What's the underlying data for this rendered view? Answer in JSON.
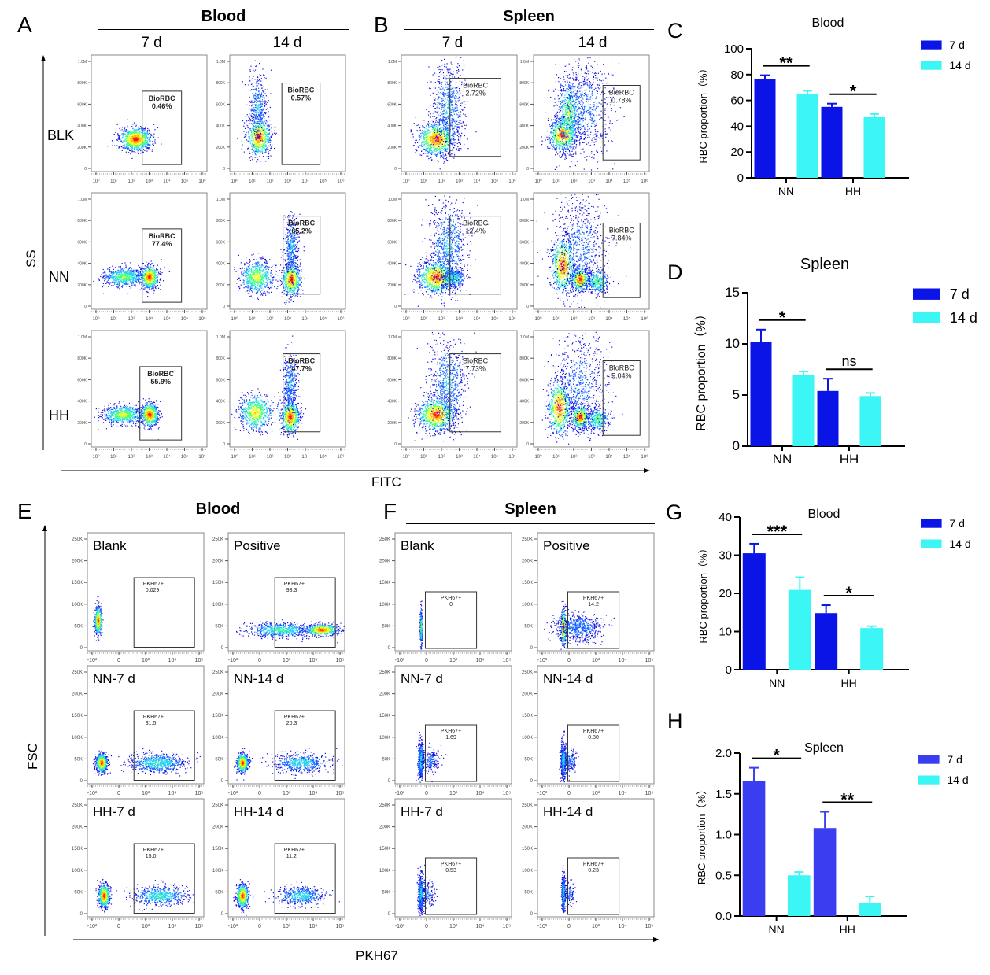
{
  "panels": {
    "A": {
      "letter": "A",
      "group_title": "Blood",
      "columns": [
        "7 d",
        "14 d"
      ],
      "rows": [
        "BLK",
        "NN",
        "HH"
      ],
      "gate_name": "BioRBC",
      "gate_values": [
        [
          "0.46%",
          "0.57%"
        ],
        [
          "77.4%",
          "65.2%"
        ],
        [
          "55.9%",
          "47.7%"
        ]
      ],
      "y_ticks": [
        "0",
        "200K",
        "400K",
        "600K",
        "800K",
        "1.0M"
      ],
      "x_ticks": [
        "10⁰",
        "10¹",
        "10²",
        "10³",
        "10⁴",
        "10⁵",
        "10⁶"
      ]
    },
    "B": {
      "letter": "B",
      "group_title": "Spleen",
      "columns": [
        "7 d",
        "14 d"
      ],
      "gate_name": "BioRBC",
      "gate_values": [
        [
          "2.72%",
          "0.78%"
        ],
        [
          "12.4%",
          "7.84%"
        ],
        [
          "7.73%",
          "5.04%"
        ]
      ],
      "y_ticks": [
        "0",
        "200K",
        "400K",
        "600K",
        "800K",
        "1.0M"
      ],
      "x_ticks": [
        "10⁰",
        "10¹",
        "10²",
        "10³",
        "10⁴",
        "10⁵",
        "10⁶"
      ]
    },
    "AB_axes": {
      "y_label": "SS",
      "x_label": "FITC"
    },
    "E": {
      "letter": "E",
      "group_title": "Blood",
      "plot_labels": [
        [
          "Blank",
          "Positive"
        ],
        [
          "NN-7 d",
          "NN-14 d"
        ],
        [
          "HH-7 d",
          "HH-14 d"
        ]
      ],
      "gate_name": "PKH67+",
      "gate_values": [
        [
          "0.029",
          "93.3"
        ],
        [
          "31.5",
          "20.3"
        ],
        [
          "15.0",
          "11.2"
        ]
      ],
      "y_ticks": [
        "0",
        "50K",
        "100K",
        "150K",
        "200K",
        "250K"
      ],
      "x_ticks": [
        "-10³",
        "0",
        "10³",
        "10⁴",
        "10⁵"
      ]
    },
    "F": {
      "letter": "F",
      "group_title": "Spleen",
      "plot_labels": [
        [
          "Blank",
          "Positive"
        ],
        [
          "NN-7 d",
          "NN-14 d"
        ],
        [
          "HH-7 d",
          "HH-14 d"
        ]
      ],
      "gate_name": "PKH67+",
      "gate_values": [
        [
          "0",
          "14.2"
        ],
        [
          "1.69",
          "0.80"
        ],
        [
          "0.53",
          "0.23"
        ]
      ],
      "y_ticks": [
        "0",
        "50K",
        "100K",
        "150K",
        "200K",
        "250K"
      ],
      "x_ticks": [
        "-10³",
        "0",
        "10³",
        "10⁴",
        "10⁵"
      ]
    },
    "EF_axes": {
      "y_label": "FSC",
      "x_label": "PKH67"
    }
  },
  "colors": {
    "day7": "#0a14e6",
    "day14": "#3cf5f5",
    "day7_H": "#3a3ef0"
  },
  "chart_data": [
    {
      "id": "C",
      "letter": "C",
      "type": "bar",
      "title": "Blood",
      "ylabel": "RBC proportion（%）",
      "xlabel": "",
      "categories": [
        "NN",
        "HH"
      ],
      "ylim": [
        0,
        100
      ],
      "yticks": [
        "0",
        "20",
        "40",
        "60",
        "80",
        "100"
      ],
      "ytick_values": [
        0,
        20,
        40,
        60,
        80,
        100
      ],
      "series": [
        {
          "name": "7 d",
          "values": [
            76.5,
            55
          ],
          "errors": [
            3,
            2.5
          ]
        },
        {
          "name": "14 d",
          "values": [
            65,
            47
          ],
          "errors": [
            2.5,
            2.5
          ]
        }
      ],
      "significance": [
        "**",
        "*"
      ],
      "legend": "top-right"
    },
    {
      "id": "D",
      "letter": "D",
      "type": "bar",
      "title": "Spleen",
      "ylabel": "RBC proportion（%）",
      "xlabel": "",
      "categories": [
        "NN",
        "HH"
      ],
      "ylim": [
        0,
        15
      ],
      "yticks": [
        "0",
        "5",
        "10",
        "15"
      ],
      "ytick_values": [
        0,
        5,
        10,
        15
      ],
      "series": [
        {
          "name": "7 d",
          "values": [
            10.2,
            5.4
          ],
          "errors": [
            1.2,
            1.2
          ]
        },
        {
          "name": "14 d",
          "values": [
            7.0,
            4.9
          ],
          "errors": [
            0.3,
            0.3
          ]
        }
      ],
      "significance": [
        "*",
        "ns"
      ],
      "legend": "top-right"
    },
    {
      "id": "G",
      "letter": "G",
      "type": "bar",
      "title": "Blood",
      "ylabel": "RBC proportion（%）",
      "xlabel": "",
      "categories": [
        "NN",
        "HH"
      ],
      "ylim": [
        0,
        40
      ],
      "yticks": [
        "0",
        "10",
        "20",
        "30",
        "40"
      ],
      "ytick_values": [
        0,
        10,
        20,
        30,
        40
      ],
      "series": [
        {
          "name": "7 d",
          "values": [
            30.5,
            14.8
          ],
          "errors": [
            2.5,
            2.1
          ]
        },
        {
          "name": "14 d",
          "values": [
            20.9,
            10.9
          ],
          "errors": [
            3.3,
            0.5
          ]
        }
      ],
      "significance": [
        "***",
        "*"
      ],
      "legend": "top-right"
    },
    {
      "id": "H",
      "letter": "H",
      "type": "bar",
      "title": "Spleen",
      "ylabel": "RBC proportion（%）",
      "xlabel": "",
      "categories": [
        "NN",
        "HH"
      ],
      "ylim": [
        0,
        2.0
      ],
      "yticks": [
        "0.0",
        "0.5",
        "1.0",
        "1.5",
        "2.0"
      ],
      "ytick_values": [
        0,
        0.5,
        1.0,
        1.5,
        2.0
      ],
      "series": [
        {
          "name": "7 d",
          "values": [
            1.66,
            1.08
          ],
          "errors": [
            0.16,
            0.2
          ]
        },
        {
          "name": "14 d",
          "values": [
            0.5,
            0.16
          ],
          "errors": [
            0.04,
            0.08
          ]
        }
      ],
      "significance": [
        "*",
        "**"
      ],
      "legend": "top-right"
    }
  ]
}
